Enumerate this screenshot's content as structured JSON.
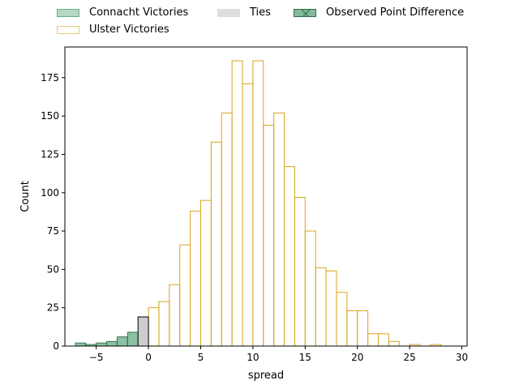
{
  "chart_data": {
    "type": "bar",
    "xlabel": "spread",
    "ylabel": "Count",
    "xlim": [
      -8,
      30.5
    ],
    "ylim": [
      0,
      195
    ],
    "xticks": [
      -5,
      0,
      5,
      10,
      15,
      20,
      25,
      30
    ],
    "yticks": [
      0,
      25,
      50,
      75,
      100,
      125,
      150,
      175
    ],
    "bin_width": 1,
    "legend_placement": "top-center",
    "series": [
      {
        "name": "Connacht Victories",
        "color": "#2e8b57",
        "bins": [
          {
            "x": -6.5,
            "count": 2
          },
          {
            "x": -5.5,
            "count": 1
          },
          {
            "x": -4.5,
            "count": 2
          },
          {
            "x": -3.5,
            "count": 3
          },
          {
            "x": -2.5,
            "count": 6
          },
          {
            "x": -1.5,
            "count": 9
          }
        ]
      },
      {
        "name": "Ulster Victories",
        "color": "#daa520",
        "bins": [
          {
            "x": 0.5,
            "count": 25
          },
          {
            "x": 1.5,
            "count": 29
          },
          {
            "x": 2.5,
            "count": 40
          },
          {
            "x": 3.5,
            "count": 66
          },
          {
            "x": 4.5,
            "count": 88
          },
          {
            "x": 5.5,
            "count": 95
          },
          {
            "x": 6.5,
            "count": 133
          },
          {
            "x": 7.5,
            "count": 152
          },
          {
            "x": 8.5,
            "count": 186
          },
          {
            "x": 9.5,
            "count": 171
          },
          {
            "x": 10.5,
            "count": 186
          },
          {
            "x": 11.5,
            "count": 144
          },
          {
            "x": 12.5,
            "count": 152
          },
          {
            "x": 13.5,
            "count": 117
          },
          {
            "x": 14.5,
            "count": 97
          },
          {
            "x": 15.5,
            "count": 75
          },
          {
            "x": 16.5,
            "count": 51
          },
          {
            "x": 17.5,
            "count": 49
          },
          {
            "x": 18.5,
            "count": 35
          },
          {
            "x": 19.5,
            "count": 23
          },
          {
            "x": 20.5,
            "count": 23
          },
          {
            "x": 21.5,
            "count": 8
          },
          {
            "x": 22.5,
            "count": 8
          },
          {
            "x": 23.5,
            "count": 3
          },
          {
            "x": 24.5,
            "count": 0
          },
          {
            "x": 25.5,
            "count": 1
          },
          {
            "x": 26.5,
            "count": 0
          },
          {
            "x": 27.5,
            "count": 1
          }
        ]
      },
      {
        "name": "Ties",
        "color": "#cccccc",
        "bins": [
          {
            "x": -0.5,
            "count": 19
          }
        ]
      },
      {
        "name": "Observed Point Difference",
        "color": "#2e8b57",
        "bins": [
          {
            "x": -0.5,
            "count": 19
          }
        ]
      }
    ]
  },
  "legend": {
    "connacht": "Connacht Victories",
    "ulster": "Ulster Victories",
    "ties": "Ties",
    "observed": "Observed Point Difference"
  }
}
